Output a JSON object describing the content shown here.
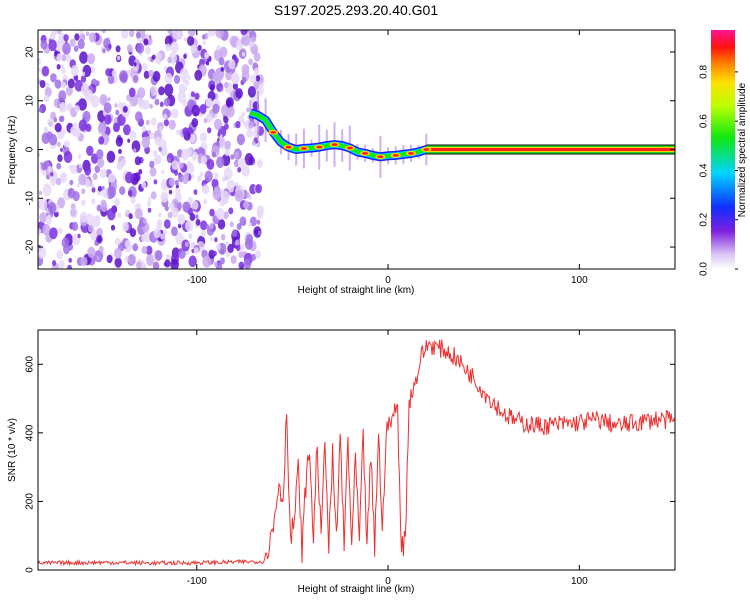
{
  "title": "S197.2025.293.20.40.G01",
  "chart_data": [
    {
      "type": "heatmap",
      "name": "spectrogram",
      "xlabel": "Height of straight line (km)",
      "ylabel": "Frequency (Hz)",
      "xlim": [
        -183,
        150
      ],
      "ylim": [
        -24.5,
        24.5
      ],
      "xticks": [
        -100,
        0,
        100
      ],
      "xtick_labels": [
        "-100",
        "0",
        "100"
      ],
      "yticks": [
        -20,
        -10,
        0,
        10,
        20
      ],
      "ytick_labels": [
        "-20",
        "-10",
        "0",
        "10",
        "20"
      ],
      "noise_region_x": [
        -183,
        -66
      ],
      "frequency_track": {
        "x": [
          -72,
          -68,
          -64,
          -60,
          -56,
          -52,
          -48,
          -44,
          -40,
          -36,
          -32,
          -28,
          -24,
          -20,
          -16,
          -12,
          -8,
          -4,
          0,
          4,
          8,
          12,
          16,
          20,
          150
        ],
        "y": [
          7.5,
          7,
          6,
          3.5,
          1.5,
          0.5,
          0,
          0.2,
          0.3,
          0.5,
          0.8,
          1,
          0.8,
          0.3,
          -0.5,
          -0.8,
          -1.2,
          -1.5,
          -1.3,
          -1.2,
          -1,
          -0.8,
          -0.5,
          0,
          0
        ]
      },
      "colorbar": {
        "label": "Normalized spectral amplitude",
        "range": [
          0.0,
          0.97
        ],
        "ticks": [
          0.0,
          0.2,
          0.4,
          0.6,
          0.8
        ],
        "tick_labels": [
          "0.0",
          "0.2",
          "0.4",
          "0.6",
          "0.8"
        ]
      }
    },
    {
      "type": "line",
      "name": "snr",
      "xlabel": "Height of straight line (km)",
      "ylabel": "SNR (10 * v/v)",
      "xlim": [
        -183,
        150
      ],
      "ylim": [
        0,
        700
      ],
      "xticks": [
        -100,
        0,
        100
      ],
      "xtick_labels": [
        "-100",
        "0",
        "100"
      ],
      "yticks": [
        0,
        200,
        400,
        600
      ],
      "ytick_labels": [
        "0",
        "200",
        "400",
        "600"
      ],
      "series": [
        {
          "name": "SNR",
          "color": "#ee3030",
          "x": [
            -183,
            -150,
            -120,
            -90,
            -65,
            -60,
            -57,
            -55,
            -53,
            -51,
            -49,
            -47,
            -45,
            -43,
            -41,
            -39,
            -37,
            -35,
            -33,
            -31,
            -29,
            -27,
            -25,
            -23,
            -21,
            -19,
            -17,
            -15,
            -13,
            -11,
            -9,
            -7,
            -5,
            -3,
            -1,
            1,
            3,
            5,
            7,
            9,
            11,
            13,
            15,
            17,
            19,
            21,
            25,
            30,
            35,
            40,
            45,
            50,
            55,
            60,
            65,
            70,
            80,
            90,
            100,
            110,
            120,
            130,
            140,
            150
          ],
          "y": [
            20,
            22,
            20,
            22,
            25,
            120,
            260,
            200,
            470,
            80,
            150,
            290,
            60,
            250,
            350,
            90,
            380,
            70,
            400,
            60,
            330,
            80,
            400,
            60,
            380,
            70,
            320,
            80,
            380,
            70,
            330,
            60,
            410,
            90,
            420,
            420,
            460,
            470,
            60,
            90,
            490,
            530,
            560,
            620,
            640,
            660,
            650,
            640,
            620,
            590,
            560,
            520,
            490,
            460,
            440,
            430,
            420,
            425,
            430,
            440,
            420,
            430,
            440,
            435
          ]
        }
      ]
    }
  ]
}
